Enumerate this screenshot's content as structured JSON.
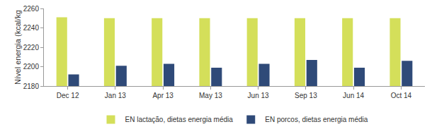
{
  "chart_data": {
    "type": "bar",
    "y_label": "Nível energia (kcal/kg",
    "categories": [
      "Dec 12",
      "Jan 13",
      "Apr 13",
      "May 13",
      "Jun 13",
      "Sep 13",
      "Jun 14",
      "Oct 14"
    ],
    "series": [
      {
        "name": "EN lactação, dietas energia média",
        "color": "#d4df5a",
        "values": [
          2251,
          2250,
          2250,
          2250,
          2250,
          2250,
          2250,
          2250
        ]
      },
      {
        "name": "EN porcos, dietas energia média",
        "color": "#2f4a78",
        "values": [
          2192,
          2201,
          2203,
          2199,
          2203,
          2207,
          2199,
          2206
        ]
      }
    ],
    "ylim": [
      2180,
      2260
    ],
    "yticks": [
      2180,
      2200,
      2220,
      2240,
      2260
    ],
    "grid": false,
    "legend": "bottom"
  }
}
